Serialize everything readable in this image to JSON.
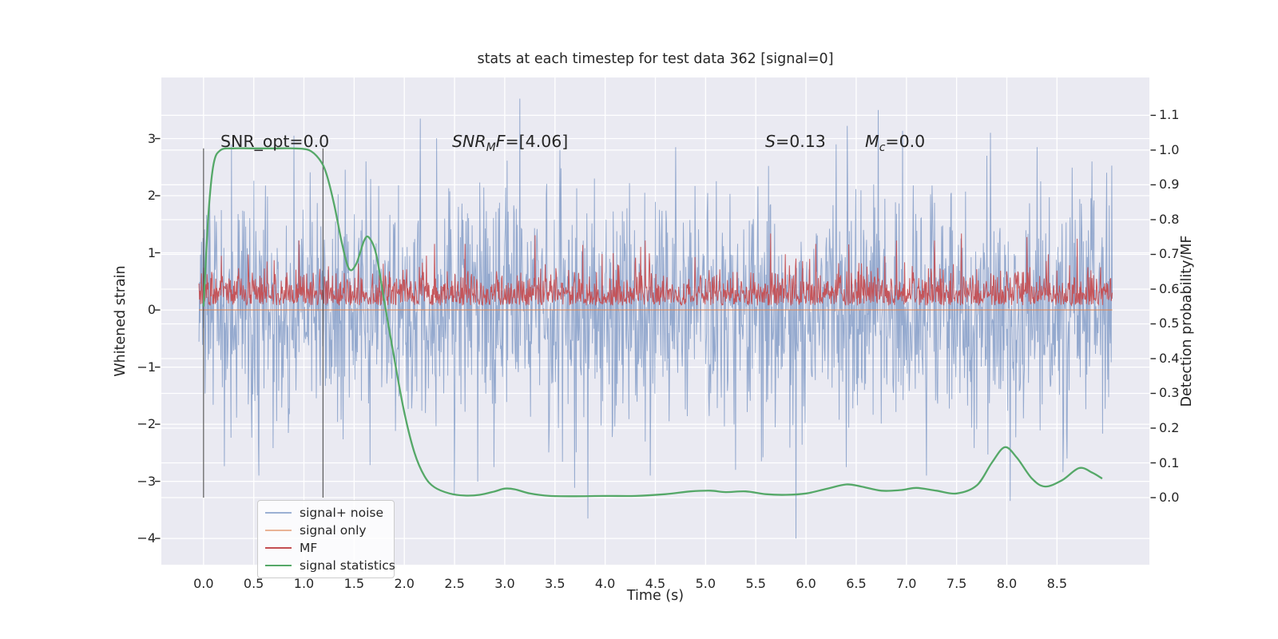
{
  "figure": {
    "background": "#ffffff",
    "axes_background": "#eaeaf2",
    "grid_color": "#ffffff",
    "text_color": "#262626",
    "vline_color": "#404040"
  },
  "annotations": {
    "snr_opt": "SNR_opt=0.0",
    "snr_mf": {
      "italic_pre": "SNR",
      "sub": "M",
      "italic_post": "F",
      "rest": "=[4.06]"
    },
    "s_stat": {
      "italic": "S",
      "rest": "=0.13"
    },
    "m_c": {
      "italic": "M",
      "sub": "c",
      "rest": "=0.0"
    }
  },
  "legend": {
    "items": [
      {
        "label": "signal+ noise",
        "color": "#4c72b0",
        "alpha": 0.55
      },
      {
        "label": "signal only",
        "color": "#dd8452",
        "alpha": 0.6
      },
      {
        "label": "MF",
        "color": "#c44e52",
        "alpha": 1.0
      },
      {
        "label": "signal statistics",
        "color": "#55a868",
        "alpha": 1.0
      }
    ]
  },
  "chart_data": {
    "type": "line",
    "title": "stats at each timestep for test data 362 [signal=0]",
    "xlabel": "Time (s)",
    "ylabel_left": "Whitened strain",
    "ylabel_right": "Detection probability/MF",
    "xlim": [
      -0.42,
      9.42
    ],
    "ylim_left": [
      -4.46,
      4.07
    ],
    "ylim_right": [
      -0.193,
      1.209
    ],
    "grid": true,
    "legend_position": "lower left",
    "x_ticks": {
      "values": [
        0.0,
        0.5,
        1.0,
        1.5,
        2.0,
        2.5,
        3.0,
        3.5,
        4.0,
        4.5,
        5.0,
        5.5,
        6.0,
        6.5,
        7.0,
        7.5,
        8.0,
        8.5
      ],
      "labels": [
        "0.0",
        "0.5",
        "1.0",
        "1.5",
        "2.0",
        "2.5",
        "3.0",
        "3.5",
        "4.0",
        "4.5",
        "5.0",
        "5.5",
        "6.0",
        "6.5",
        "7.0",
        "7.5",
        "8.0",
        "8.5"
      ]
    },
    "y_ticks_left": {
      "values": [
        3,
        2,
        1,
        0,
        -1,
        -2,
        -3,
        -4
      ],
      "labels": [
        "3",
        "2",
        "1",
        "0",
        "−1",
        "−2",
        "−3",
        "−4"
      ]
    },
    "y_ticks_right": {
      "values": [
        1.1,
        1.0,
        0.9,
        0.8,
        0.7,
        0.6,
        0.5,
        0.4,
        0.3,
        0.2,
        0.1,
        0.0
      ],
      "labels": [
        "1.1",
        "1.0",
        "0.9",
        "0.8",
        "0.7",
        "0.6",
        "0.5",
        "0.4",
        "0.3",
        "0.2",
        "0.1",
        "0.0"
      ]
    },
    "vlines": {
      "x": [
        0.0,
        1.19
      ],
      "y_span_right_axis": [
        0.0,
        1.005
      ]
    },
    "series": [
      {
        "name": "signal+ noise",
        "axis": "left",
        "color": "#4c72b0",
        "alpha": 0.55,
        "linewidth": 1,
        "kind": "gaussian-noise",
        "t_start": -0.045,
        "t_end": 9.05,
        "n_points": 1800,
        "mean": 0.0,
        "std": 0.98,
        "clip": [
          -4.05,
          3.75
        ],
        "seed": 20,
        "forced_spikes": [
          [
            0.28,
            2.9
          ],
          [
            0.55,
            -2.9
          ],
          [
            0.9,
            3.05
          ],
          [
            1.62,
            2.6
          ],
          [
            2.16,
            3.35
          ],
          [
            2.5,
            -3.25
          ],
          [
            3.15,
            3.7
          ],
          [
            3.55,
            2.8
          ],
          [
            3.83,
            -3.65
          ],
          [
            4.45,
            -2.9
          ],
          [
            4.7,
            2.85
          ],
          [
            5.3,
            -2.8
          ],
          [
            5.9,
            -4.0
          ],
          [
            6.3,
            2.9
          ],
          [
            6.72,
            3.5
          ],
          [
            7.2,
            -2.9
          ],
          [
            7.8,
            2.7
          ],
          [
            8.3,
            2.85
          ],
          [
            8.6,
            -2.6
          ],
          [
            8.85,
            2.6
          ]
        ]
      },
      {
        "name": "signal only",
        "axis": "left",
        "color": "#dd8452",
        "alpha": 0.65,
        "linewidth": 1.6,
        "kind": "constant",
        "t_start": -0.045,
        "t_end": 9.05,
        "value": 0.0
      },
      {
        "name": "MF",
        "axis": "right",
        "color": "#c44e52",
        "alpha": 0.95,
        "linewidth": 1,
        "kind": "folded-noise",
        "t_start": -0.045,
        "t_end": 9.05,
        "n_points": 1800,
        "base": 0.553,
        "spread": 0.05,
        "cap": 0.78,
        "seed": 77,
        "forced_spikes": [
          [
            0.95,
            0.74
          ],
          [
            2.3,
            0.73
          ],
          [
            3.3,
            0.755
          ],
          [
            4.4,
            0.74
          ],
          [
            5.65,
            0.76
          ],
          [
            6.1,
            0.73
          ],
          [
            6.9,
            0.74
          ],
          [
            7.28,
            0.74
          ],
          [
            7.55,
            0.76
          ],
          [
            8.2,
            0.75
          ],
          [
            8.7,
            0.745
          ]
        ]
      },
      {
        "name": "signal statistics",
        "axis": "right",
        "color": "#55a868",
        "alpha": 1.0,
        "linewidth": 2.3,
        "kind": "smooth-keypoints",
        "keypoints": [
          [
            0.0,
            0.55
          ],
          [
            0.05,
            0.82
          ],
          [
            0.1,
            0.96
          ],
          [
            0.17,
            1.0
          ],
          [
            0.3,
            1.005
          ],
          [
            0.5,
            1.005
          ],
          [
            0.7,
            1.005
          ],
          [
            0.9,
            1.005
          ],
          [
            1.05,
            1.0
          ],
          [
            1.15,
            0.975
          ],
          [
            1.22,
            0.935
          ],
          [
            1.3,
            0.845
          ],
          [
            1.38,
            0.73
          ],
          [
            1.45,
            0.658
          ],
          [
            1.52,
            0.672
          ],
          [
            1.6,
            0.74
          ],
          [
            1.65,
            0.748
          ],
          [
            1.72,
            0.7
          ],
          [
            1.8,
            0.565
          ],
          [
            1.9,
            0.4
          ],
          [
            2.0,
            0.245
          ],
          [
            2.1,
            0.13
          ],
          [
            2.2,
            0.062
          ],
          [
            2.3,
            0.03
          ],
          [
            2.45,
            0.012
          ],
          [
            2.6,
            0.006
          ],
          [
            2.75,
            0.008
          ],
          [
            2.9,
            0.018
          ],
          [
            3.0,
            0.026
          ],
          [
            3.1,
            0.024
          ],
          [
            3.25,
            0.012
          ],
          [
            3.45,
            0.005
          ],
          [
            3.7,
            0.004
          ],
          [
            4.0,
            0.005
          ],
          [
            4.3,
            0.005
          ],
          [
            4.6,
            0.01
          ],
          [
            4.85,
            0.018
          ],
          [
            5.05,
            0.02
          ],
          [
            5.2,
            0.016
          ],
          [
            5.4,
            0.018
          ],
          [
            5.6,
            0.01
          ],
          [
            5.8,
            0.008
          ],
          [
            6.0,
            0.012
          ],
          [
            6.2,
            0.025
          ],
          [
            6.4,
            0.038
          ],
          [
            6.55,
            0.032
          ],
          [
            6.75,
            0.02
          ],
          [
            6.95,
            0.022
          ],
          [
            7.1,
            0.028
          ],
          [
            7.3,
            0.02
          ],
          [
            7.5,
            0.012
          ],
          [
            7.7,
            0.035
          ],
          [
            7.85,
            0.1
          ],
          [
            7.98,
            0.145
          ],
          [
            8.1,
            0.115
          ],
          [
            8.25,
            0.055
          ],
          [
            8.38,
            0.032
          ],
          [
            8.55,
            0.05
          ],
          [
            8.72,
            0.085
          ],
          [
            8.85,
            0.072
          ],
          [
            8.95,
            0.055
          ]
        ]
      }
    ]
  }
}
